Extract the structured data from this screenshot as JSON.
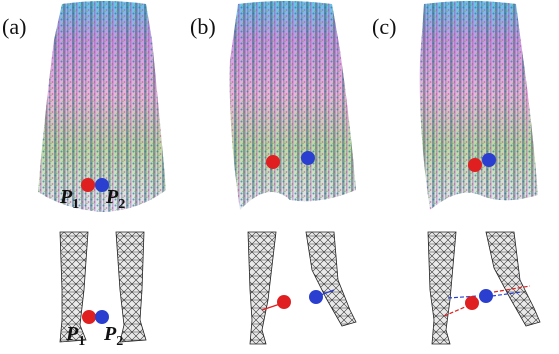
{
  "panels": [
    {
      "id": "a",
      "label": "(a)"
    },
    {
      "id": "b",
      "label": "(b)"
    },
    {
      "id": "c",
      "label": "(c)"
    }
  ],
  "point_labels": {
    "p1_main": "P",
    "p1_sub": "1",
    "p2_main": "P",
    "p2_sub": "2"
  },
  "colors": {
    "p1": "#e02020",
    "p2": "#2a3fd0",
    "mesh": "#2b2b2b",
    "skirt_top": "#58c8e8"
  }
}
